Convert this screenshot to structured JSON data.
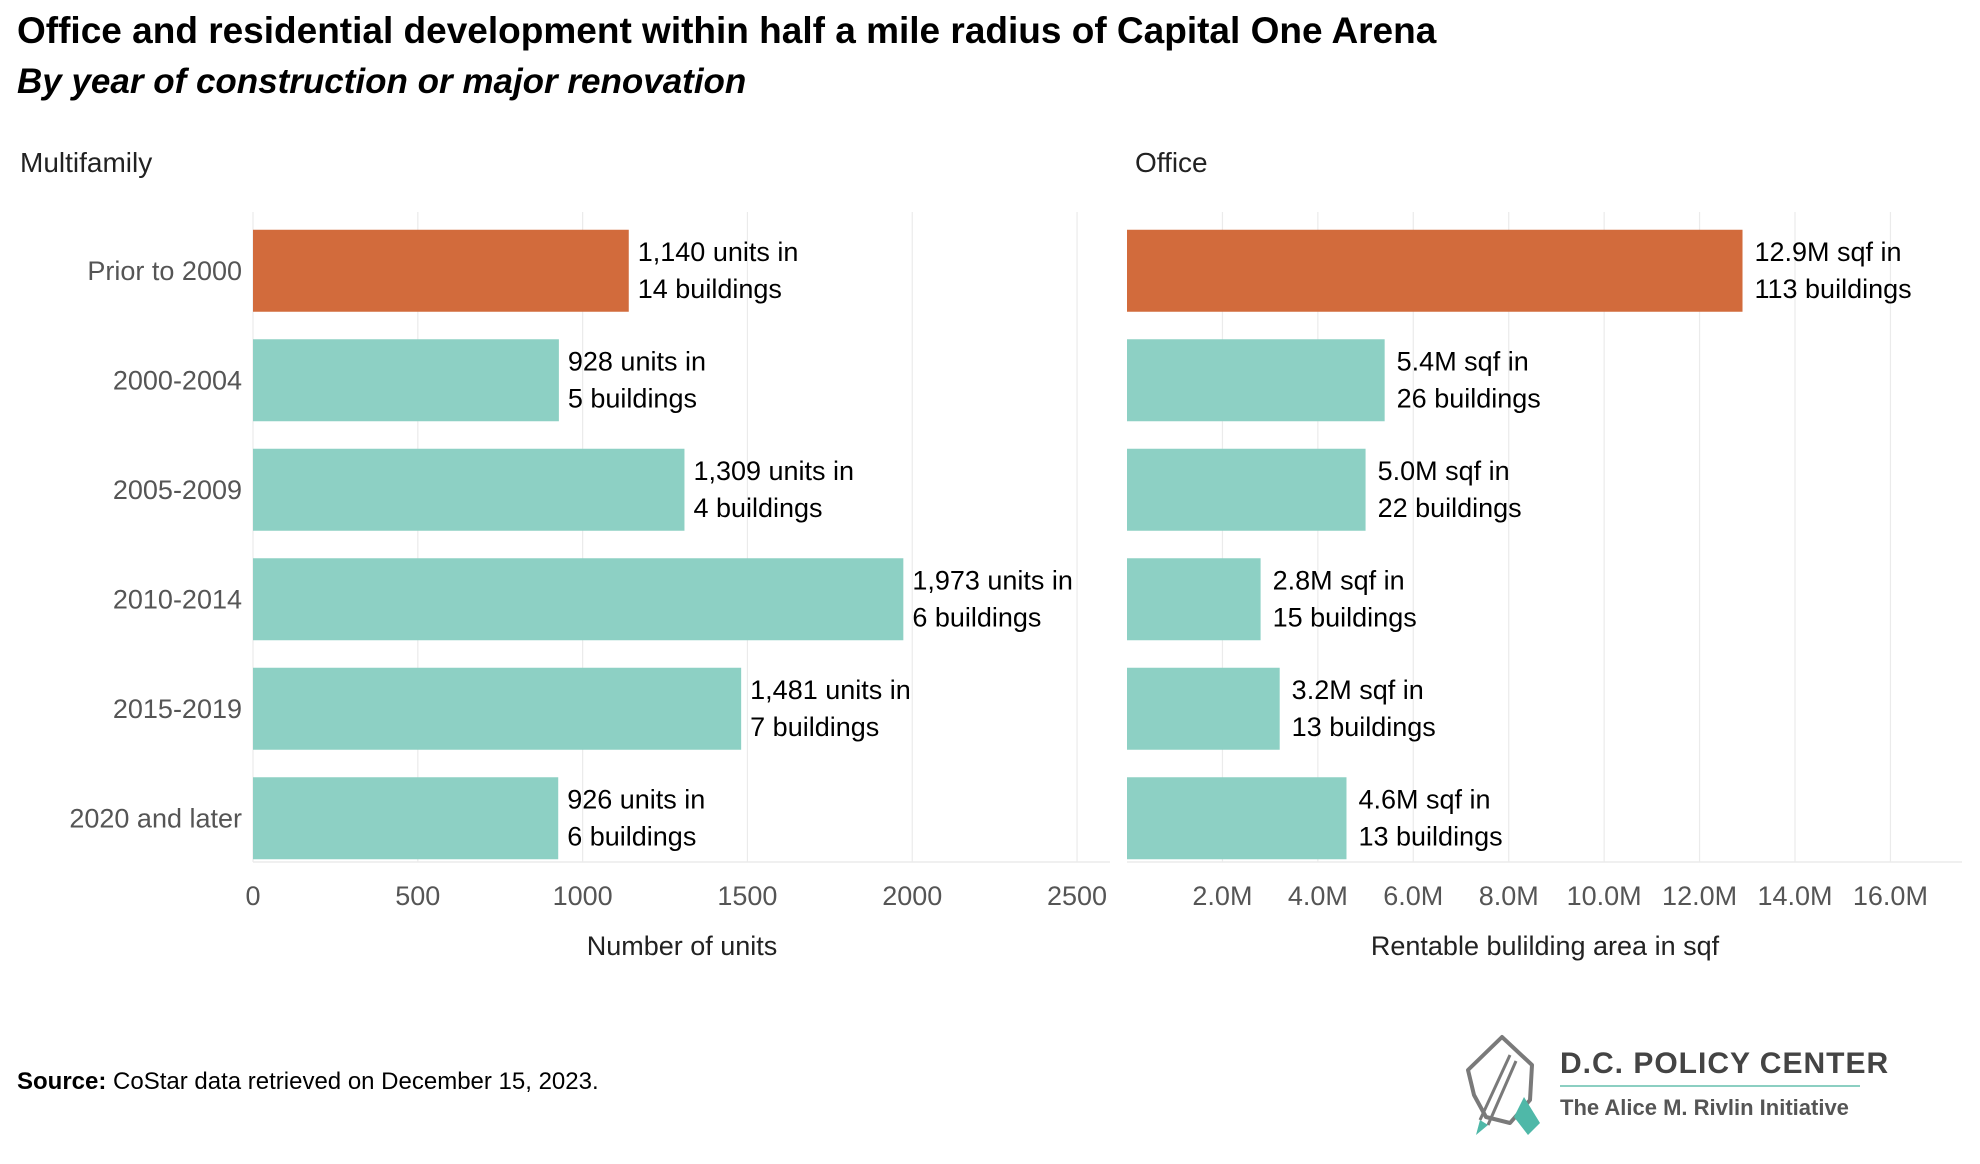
{
  "title": "Office and residential development within half a mile radius of Capital One Arena",
  "subtitle": "By year of construction or major renovation",
  "colors": {
    "highlight": "#d26b3c",
    "bar": "#8dd0c4",
    "grid": "#ebebeb",
    "axis_text": "#555555"
  },
  "chart_data": [
    {
      "type": "bar",
      "orientation": "horizontal",
      "title": "Multifamily",
      "categories": [
        "Prior to 2000",
        "2000-2004",
        "2005-2009",
        "2010-2014",
        "2015-2019",
        "2020 and later"
      ],
      "values": [
        1140,
        928,
        1309,
        1973,
        1481,
        926
      ],
      "labels": [
        [
          "1,140 units in",
          "14 buildings"
        ],
        [
          "928 units in",
          "5 buildings"
        ],
        [
          "1,309 units in",
          "4 buildings"
        ],
        [
          "1,973 units in",
          "6 buildings"
        ],
        [
          "1,481 units in",
          "7 buildings"
        ],
        [
          "926 units in",
          "6 buildings"
        ]
      ],
      "xlim": [
        0,
        2600
      ],
      "xticks": [
        0,
        500,
        1000,
        1500,
        2000,
        2500
      ],
      "xticklabels": [
        "0",
        "500",
        "1000",
        "1500",
        "2000",
        "2500"
      ],
      "xlabel": "Number of units",
      "highlight_index": 0,
      "grid": true
    },
    {
      "type": "bar",
      "orientation": "horizontal",
      "title": "Office",
      "categories": [
        "Prior to 2000",
        "2000-2004",
        "2005-2009",
        "2010-2014",
        "2015-2019",
        "2020 and later"
      ],
      "values": [
        12.9,
        5.4,
        5.0,
        2.8,
        3.2,
        4.6
      ],
      "value_unit": "M sqf",
      "labels": [
        [
          "12.9M  sqf in",
          "113 buildings"
        ],
        [
          "5.4M  sqf in",
          "26 buildings"
        ],
        [
          "5.0M  sqf in",
          "22 buildings"
        ],
        [
          "2.8M  sqf in",
          "15 buildings"
        ],
        [
          "3.2M  sqf in",
          "13 buildings"
        ],
        [
          "4.6M  sqf in",
          "13 buildings"
        ]
      ],
      "xlim": [
        0,
        17.5
      ],
      "xticks": [
        2,
        4,
        6,
        8,
        10,
        12,
        14,
        16
      ],
      "xticklabels": [
        "2.0M",
        "4.0M",
        "6.0M",
        "8.0M",
        "10.0M",
        "12.0M",
        "14.0M",
        "16.0M"
      ],
      "xlabel": "Rentable bulilding area in sqf",
      "highlight_index": 0,
      "grid": true
    }
  ],
  "source": {
    "label": "Source:",
    "text": " CoStar data retrieved on December 15, 2023."
  },
  "logo": {
    "name": "D.C. POLICY CENTER",
    "subtitle": "The Alice M. Rivlin Initiative"
  }
}
